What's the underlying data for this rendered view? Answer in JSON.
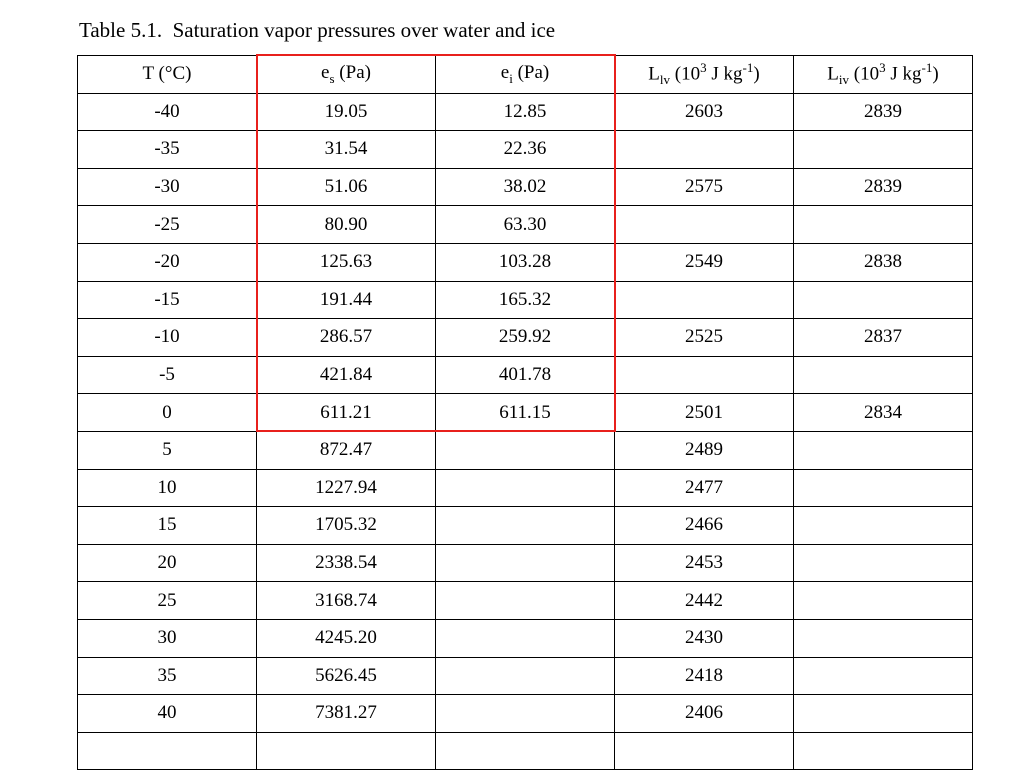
{
  "title": "Table 5.1.  Saturation vapor pressures over water and ice",
  "table": {
    "header": [
      [
        {
          "text": "T (°C)"
        }
      ],
      [
        {
          "text": "e"
        },
        {
          "text": "s",
          "style": "sub"
        },
        {
          "text": " (Pa)"
        }
      ],
      [
        {
          "text": "e"
        },
        {
          "text": "i",
          "style": "sub"
        },
        {
          "text": " (Pa)"
        }
      ],
      [
        {
          "text": "L"
        },
        {
          "text": "lv",
          "style": "sub"
        },
        {
          "text": " (10"
        },
        {
          "text": "3",
          "style": "sup"
        },
        {
          "text": " J kg"
        },
        {
          "text": "-1",
          "style": "sup"
        },
        {
          "text": ")"
        }
      ],
      [
        {
          "text": "L"
        },
        {
          "text": "iv",
          "style": "sub"
        },
        {
          "text": " (10"
        },
        {
          "text": "3",
          "style": "sup"
        },
        {
          "text": " J kg"
        },
        {
          "text": "-1",
          "style": "sup"
        },
        {
          "text": ")"
        }
      ]
    ],
    "rows": [
      [
        "-40",
        "19.05",
        "12.85",
        "2603",
        "2839"
      ],
      [
        "-35",
        "31.54",
        "22.36",
        null,
        null
      ],
      [
        "-30",
        "51.06",
        "38.02",
        "2575",
        "2839"
      ],
      [
        "-25",
        "80.90",
        "63.30",
        null,
        null
      ],
      [
        "-20",
        "125.63",
        "103.28",
        "2549",
        "2838"
      ],
      [
        "-15",
        "191.44",
        "165.32",
        null,
        null
      ],
      [
        "-10",
        "286.57",
        "259.92",
        "2525",
        "2837"
      ],
      [
        "-5",
        "421.84",
        "401.78",
        null,
        null
      ],
      [
        "0",
        "611.21",
        "611.15",
        "2501",
        "2834"
      ],
      [
        "5",
        "872.47",
        null,
        "2489",
        null
      ],
      [
        "10",
        "1227.94",
        null,
        "2477",
        null
      ],
      [
        "15",
        "1705.32",
        null,
        "2466",
        null
      ],
      [
        "20",
        "2338.54",
        null,
        "2453",
        null
      ],
      [
        "25",
        "3168.74",
        null,
        "2442",
        null
      ],
      [
        "30",
        "4245.20",
        null,
        "2430",
        null
      ],
      [
        "35",
        "5626.45",
        null,
        "2418",
        null
      ],
      [
        "40",
        "7381.27",
        null,
        "2406",
        null
      ],
      [
        null,
        null,
        null,
        null,
        null
      ]
    ]
  }
}
